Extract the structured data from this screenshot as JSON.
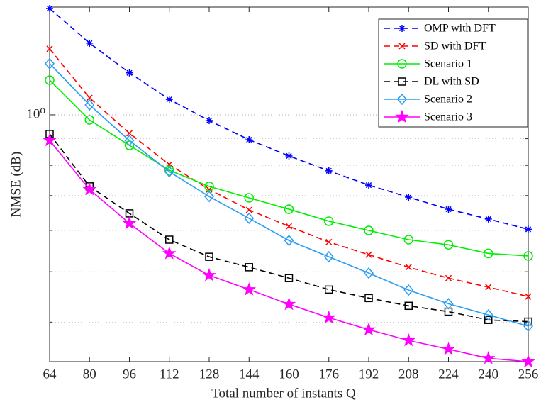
{
  "chart_data": {
    "type": "line",
    "xlabel": "Total number of instants Q",
    "ylabel": "NMSE (dB)",
    "x": [
      64,
      80,
      96,
      112,
      128,
      144,
      160,
      176,
      192,
      208,
      224,
      240,
      256
    ],
    "xlim": [
      64,
      256
    ],
    "xticks": [
      64,
      80,
      96,
      112,
      128,
      144,
      160,
      176,
      192,
      208,
      224,
      240,
      256
    ],
    "ylim": [
      0.336,
      1.61
    ],
    "yscale": "log",
    "yticks": [
      {
        "value": 1,
        "label": "10⁰"
      }
    ],
    "y_minor_ticks": [
      0.4,
      0.5,
      0.6,
      0.7,
      0.8,
      0.9
    ],
    "grid": true,
    "legend": "upper right",
    "series": [
      {
        "name": "OMP with DFT",
        "color": "#0000ff",
        "line_style": "--",
        "marker": "*",
        "values": [
          1.6,
          1.373,
          1.204,
          1.071,
          0.975,
          0.896,
          0.834,
          0.781,
          0.733,
          0.695,
          0.659,
          0.631,
          0.603
        ]
      },
      {
        "name": "SD with DFT",
        "color": "#ff0000",
        "line_style": "--",
        "marker": "x",
        "values": [
          1.339,
          1.078,
          0.922,
          0.803,
          0.719,
          0.657,
          0.611,
          0.57,
          0.539,
          0.51,
          0.486,
          0.467,
          0.448
        ]
      },
      {
        "name": "Scenario 1",
        "color": "#00ee00",
        "line_style": "-",
        "marker": "o",
        "values": [
          1.166,
          0.978,
          0.874,
          0.783,
          0.729,
          0.693,
          0.659,
          0.625,
          0.6,
          0.576,
          0.563,
          0.542,
          0.536
        ]
      },
      {
        "name": "DL with SD",
        "color": "#000000",
        "line_style": "--",
        "marker": "s",
        "values": [
          0.919,
          0.729,
          0.647,
          0.576,
          0.534,
          0.51,
          0.486,
          0.462,
          0.445,
          0.43,
          0.419,
          0.404,
          0.401
        ]
      },
      {
        "name": "Scenario 2",
        "color": "#2a9df4",
        "line_style": "-",
        "marker": "d",
        "values": [
          1.254,
          1.045,
          0.893,
          0.778,
          0.697,
          0.633,
          0.574,
          0.534,
          0.497,
          0.461,
          0.434,
          0.413,
          0.393
        ]
      },
      {
        "name": "Scenario 3",
        "color": "#ff00ff",
        "line_style": "-",
        "marker": "p",
        "values": [
          0.893,
          0.719,
          0.619,
          0.542,
          0.492,
          0.462,
          0.433,
          0.408,
          0.387,
          0.369,
          0.355,
          0.341,
          0.336
        ]
      }
    ]
  }
}
